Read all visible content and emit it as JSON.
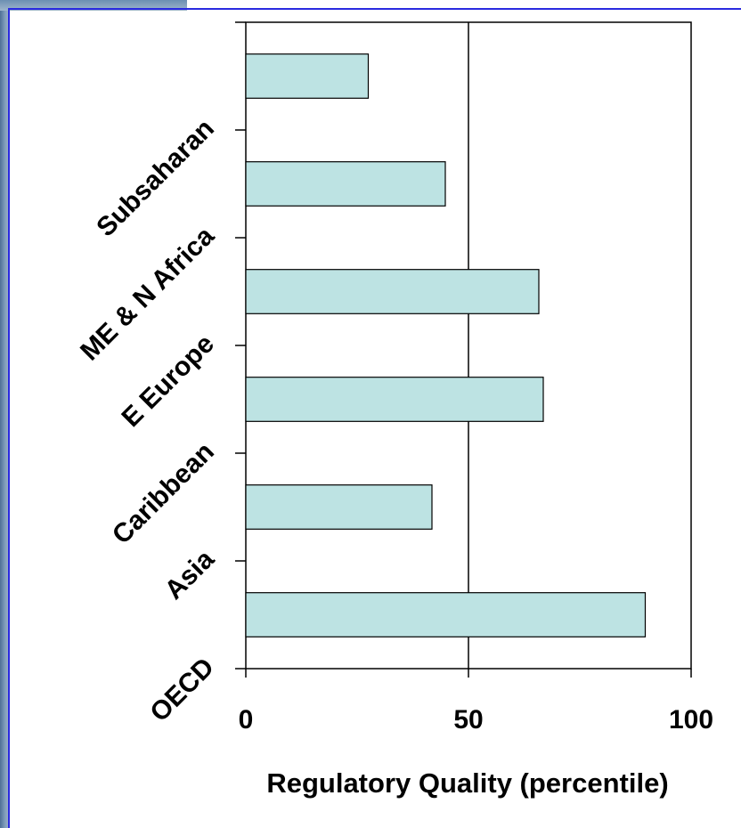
{
  "chart_data": {
    "type": "bar",
    "orientation": "horizontal",
    "categories": [
      "OECD",
      "Asia",
      "Caribbean",
      "E Europe",
      "ME & N Africa",
      "Subsaharan"
    ],
    "values": [
      89.7,
      41.8,
      66.8,
      65.8,
      44.8,
      27.5
    ],
    "xlabel": "Regulatory Quality (percentile)",
    "ylabel": "",
    "title": "",
    "xlim": [
      0,
      100
    ],
    "xticks": [
      "0",
      "50",
      "100"
    ],
    "bar_color": "#bde3e3",
    "bar_edge_color": "#000000",
    "gridlines": [
      50
    ],
    "grid": false
  }
}
